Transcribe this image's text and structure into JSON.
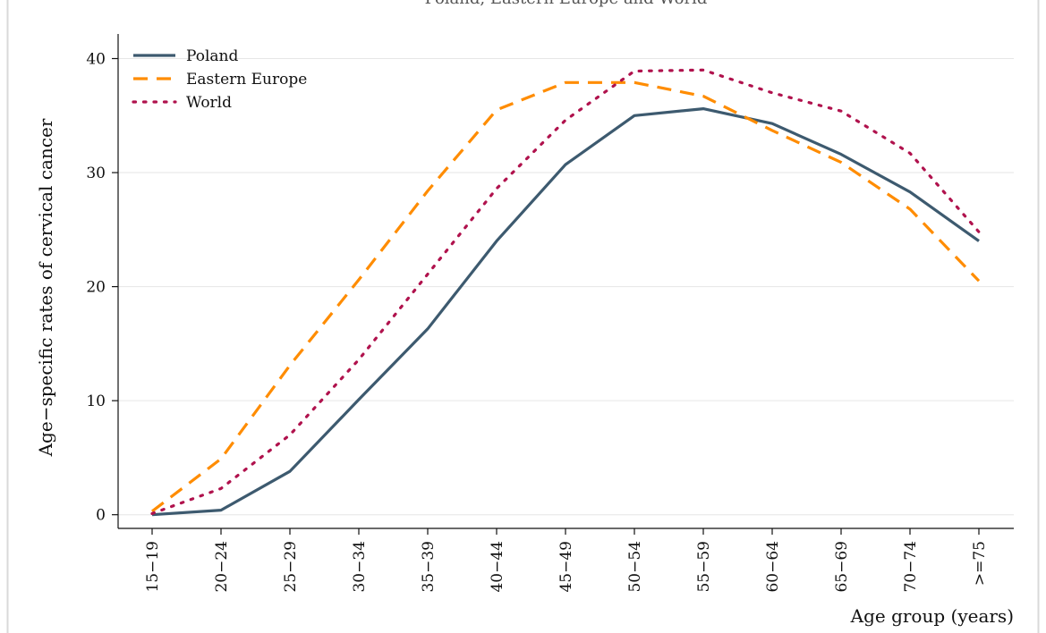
{
  "chart_data": {
    "type": "line",
    "title": "Poland, Eastern Europe and World",
    "xlabel": "Age group (years)",
    "ylabel": "Age−specific rates of cervical cancer",
    "categories": [
      "15−19",
      "20−24",
      "25−29",
      "30−34",
      "35−39",
      "40−44",
      "45−49",
      "50−54",
      "55−59",
      "60−64",
      "65−69",
      "70−74",
      ">=75"
    ],
    "ylim": [
      -1.2,
      42
    ],
    "yticks": [
      0,
      10,
      20,
      30,
      40
    ],
    "grid": true,
    "legend_position": "top-left",
    "series": [
      {
        "name": "Poland",
        "color": "#3d5a6f",
        "style": "solid",
        "values": [
          0.0,
          0.4,
          3.8,
          10.1,
          16.3,
          24.0,
          30.7,
          35.0,
          35.6,
          34.3,
          31.6,
          28.3,
          24.0
        ]
      },
      {
        "name": "Eastern Europe",
        "color": "#ff8c00",
        "style": "dash",
        "values": [
          0.3,
          4.9,
          13.1,
          20.6,
          28.4,
          35.5,
          37.9,
          37.9,
          36.7,
          33.7,
          30.9,
          26.8,
          20.5
        ]
      },
      {
        "name": "World",
        "color": "#b0124d",
        "style": "dot",
        "values": [
          0.1,
          2.3,
          7.0,
          13.6,
          21.1,
          28.6,
          34.6,
          38.9,
          39.0,
          37.0,
          35.4,
          31.7,
          24.8
        ]
      }
    ]
  }
}
